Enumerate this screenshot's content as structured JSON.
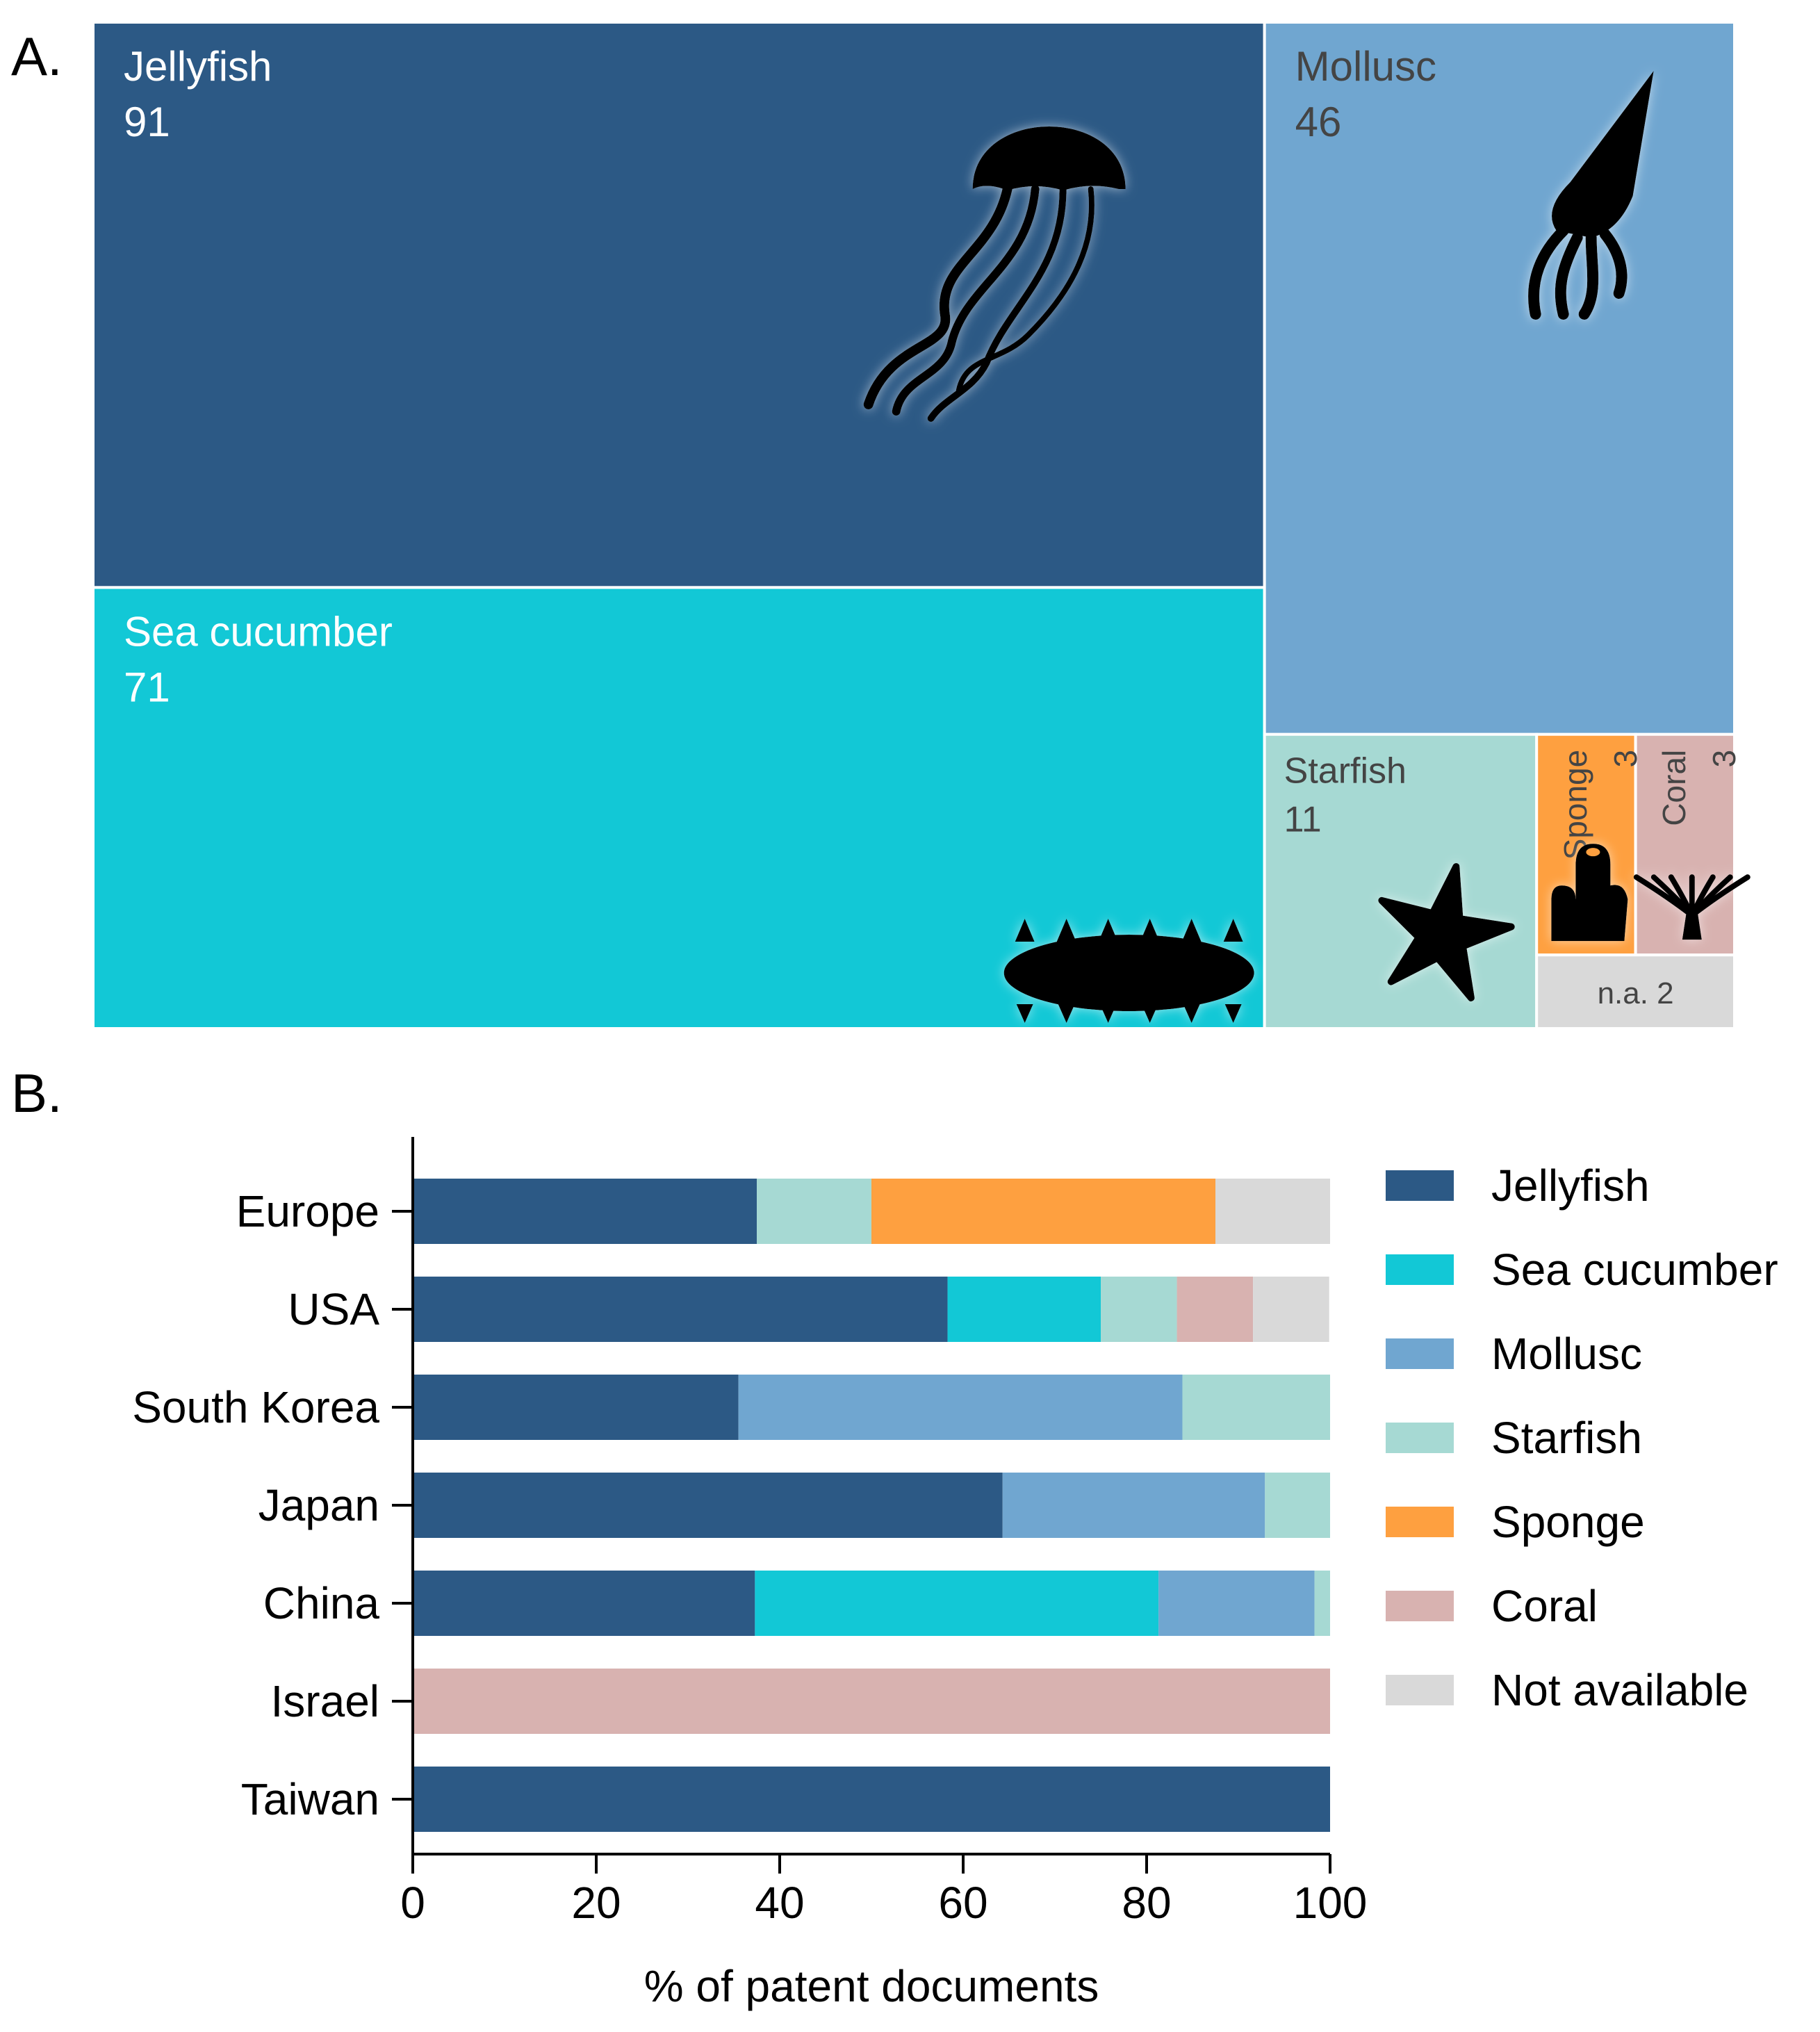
{
  "panels": {
    "a_label": "A.",
    "b_label": "B."
  },
  "chart_data": [
    {
      "type": "treemap",
      "panel": "A.",
      "nodes": [
        {
          "name": "Jellyfish",
          "value": 91,
          "value_label": "91",
          "color": "#2c5985",
          "icon": "jellyfish-icon"
        },
        {
          "name": "Sea cucumber",
          "value": 71,
          "value_label": "71",
          "color": "#12c8d6",
          "icon": "sea-cucumber-icon"
        },
        {
          "name": "Mollusc",
          "value": 46,
          "value_label": "46",
          "color": "#70a6d0",
          "icon": "squid-icon"
        },
        {
          "name": "Starfish",
          "value": 11,
          "value_label": "11",
          "color": "#a6d9d3",
          "icon": "starfish-icon"
        },
        {
          "name": "Sponge",
          "value": 3,
          "value_label": "3",
          "color": "#fea040",
          "icon": "sponge-icon"
        },
        {
          "name": "Coral",
          "value": 3,
          "value_label": "3",
          "color": "#d8b2b0",
          "icon": "coral-icon"
        },
        {
          "name": "n.a.",
          "value": 2,
          "value_label": "n.a. 2",
          "color": "#d9d9d9",
          "icon": ""
        }
      ]
    },
    {
      "type": "bar",
      "orientation": "horizontal",
      "stacked": true,
      "panel": "B.",
      "categories": [
        "Europe",
        "USA",
        "South Korea",
        "Japan",
        "China",
        "Israel",
        "Taiwan"
      ],
      "series": [
        {
          "name": "Jellyfish",
          "color": "#2c5985",
          "values": [
            37.5,
            58.3,
            35.5,
            64.3,
            37.3,
            0,
            100
          ]
        },
        {
          "name": "Sea cucumber",
          "color": "#12c8d6",
          "values": [
            0,
            16.7,
            0,
            0,
            44.0,
            0,
            0
          ]
        },
        {
          "name": "Mollusc",
          "color": "#70a6d0",
          "values": [
            0,
            0,
            48.4,
            28.6,
            17.0,
            0,
            0
          ]
        },
        {
          "name": "Starfish",
          "color": "#a6d9d3",
          "values": [
            12.5,
            8.3,
            16.1,
            7.1,
            1.7,
            0,
            0
          ]
        },
        {
          "name": "Sponge",
          "color": "#fea040",
          "values": [
            37.5,
            0,
            0,
            0,
            0,
            0,
            0
          ]
        },
        {
          "name": "Coral",
          "color": "#d8b2b0",
          "values": [
            0,
            8.3,
            0,
            0,
            0,
            100,
            0
          ]
        },
        {
          "name": "Not available",
          "color": "#d9d9d9",
          "values": [
            12.5,
            8.3,
            0,
            0,
            0,
            0,
            0
          ]
        }
      ],
      "xlabel": "% of patent documents",
      "ylabel": "",
      "xlim": [
        0,
        100
      ],
      "xticks": [
        "0",
        "20",
        "40",
        "60",
        "80",
        "100"
      ],
      "legend_position": "right",
      "grid": false
    }
  ]
}
